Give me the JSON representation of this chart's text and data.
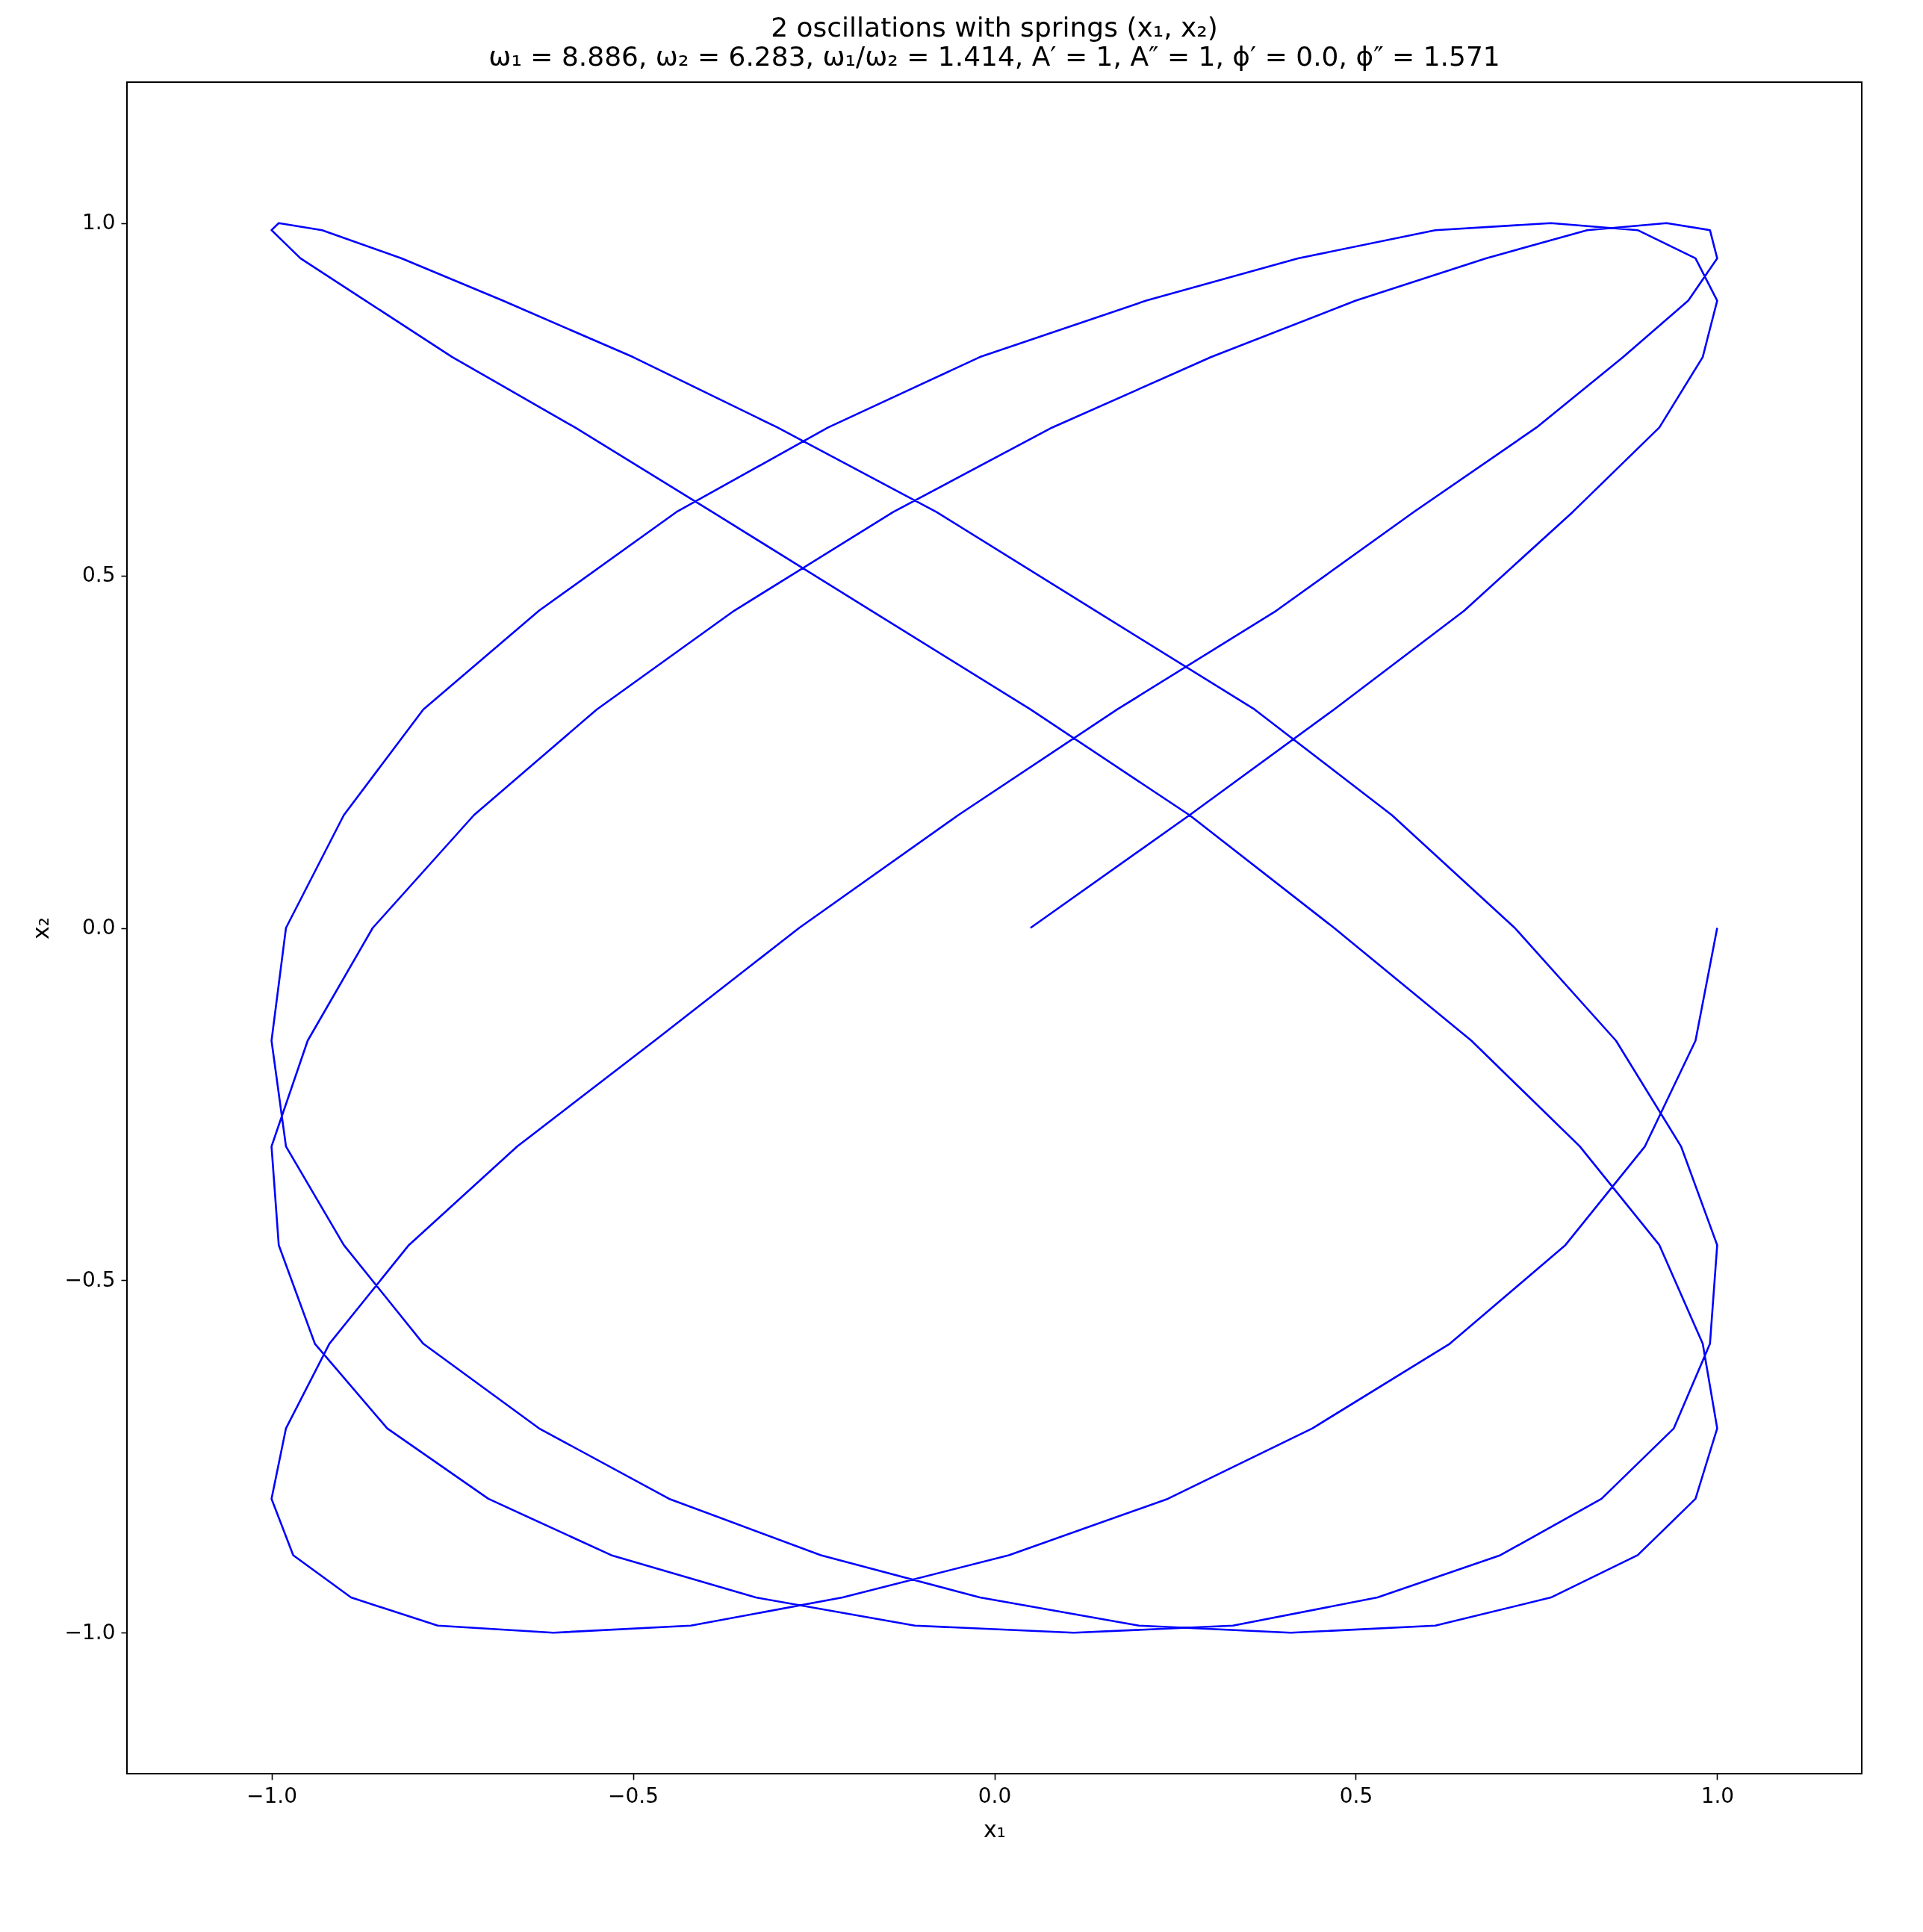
{
  "chart_data": {
    "type": "line",
    "title": "2 oscillations with springs (x₁, x₂)",
    "subtitle": "ω₁ = 8.886, ω₂ = 6.283, ω₁/ω₂ = 1.414, A′ = 1, A″ = 1, ϕ′ = 0.0, ϕ″ = 1.571",
    "xlabel": "x₁",
    "ylabel": "x₂",
    "xlim": [
      -1.2,
      1.2
    ],
    "ylim": [
      -1.2,
      1.2
    ],
    "xticks": [
      {
        "value": -1,
        "label": "−1.0"
      },
      {
        "value": -0.5,
        "label": "−0.5"
      },
      {
        "value": 0,
        "label": "0.0"
      },
      {
        "value": 0.5,
        "label": "0.5"
      },
      {
        "value": 1,
        "label": "1.0"
      }
    ],
    "yticks": [
      {
        "value": -1,
        "label": "−1.0"
      },
      {
        "value": -0.5,
        "label": "−0.5"
      },
      {
        "value": 0,
        "label": "0.0"
      },
      {
        "value": 0.5,
        "label": "0.5"
      },
      {
        "value": 1,
        "label": "1.0"
      }
    ],
    "series": [
      {
        "color": "#0000ff",
        "x": [
          1,
          0.97,
          0.9,
          0.79,
          0.63,
          0.44,
          0.24,
          0.02,
          -0.21,
          -0.42,
          -0.61,
          -0.77,
          -0.89,
          -0.97,
          -1,
          -0.98,
          -0.92,
          -0.81,
          -0.66,
          -0.47,
          -0.27,
          -0.05,
          0.17,
          0.39,
          0.58,
          0.75,
          0.87,
          0.96,
          1,
          0.99,
          0.93,
          0.82,
          0.68,
          0.5,
          0.3,
          0.08,
          -0.14,
          -0.36,
          -0.55,
          -0.72,
          -0.86,
          -0.95,
          -1,
          -0.99,
          -0.94,
          -0.84,
          -0.7,
          -0.53,
          -0.33,
          -0.11,
          0.11,
          0.33,
          0.53,
          0.7,
          0.84,
          0.94,
          0.99,
          1,
          0.95,
          0.86,
          0.72,
          0.55,
          0.36,
          0.14,
          -0.08,
          -0.3,
          -0.5,
          -0.68,
          -0.82,
          -0.93,
          -0.99,
          -1,
          -0.96,
          -0.87,
          -0.75,
          -0.58,
          -0.39,
          -0.17,
          0.05,
          0.27,
          0.47,
          0.66,
          0.81,
          0.92,
          0.98,
          1,
          0.97,
          0.89,
          0.77,
          0.61,
          0.41,
          0.2,
          -0.02,
          -0.24,
          -0.45,
          -0.63,
          -0.79,
          -0.9,
          -0.98,
          -1,
          -0.98,
          -0.9,
          -0.79,
          -0.63,
          -0.44,
          -0.23,
          -0.02,
          0.21,
          0.42,
          0.61,
          0.77,
          0.89,
          0.97,
          1,
          0.98,
          0.92,
          0.8,
          0.65,
          0.47,
          0.27,
          0.05
        ],
        "values": [
          0,
          -0.16,
          -0.31,
          -0.45,
          -0.59,
          -0.71,
          -0.81,
          -0.89,
          -0.95,
          -0.99,
          -1,
          -0.99,
          -0.95,
          -0.89,
          -0.81,
          -0.71,
          -0.59,
          -0.45,
          -0.31,
          -0.16,
          0,
          0.16,
          0.31,
          0.45,
          0.59,
          0.71,
          0.81,
          0.89,
          0.95,
          0.99,
          1,
          0.99,
          0.95,
          0.89,
          0.81,
          0.71,
          0.59,
          0.45,
          0.31,
          0.16,
          0,
          -0.16,
          -0.31,
          -0.45,
          -0.59,
          -0.71,
          -0.81,
          -0.89,
          -0.95,
          -0.99,
          -1,
          -0.99,
          -0.95,
          -0.89,
          -0.81,
          -0.71,
          -0.59,
          -0.45,
          -0.31,
          -0.16,
          0,
          0.16,
          0.31,
          0.45,
          0.59,
          0.71,
          0.81,
          0.89,
          0.95,
          0.99,
          1,
          0.99,
          0.95,
          0.89,
          0.81,
          0.71,
          0.59,
          0.45,
          0.31,
          0.16,
          0,
          -0.16,
          -0.31,
          -0.45,
          -0.59,
          -0.71,
          -0.81,
          -0.89,
          -0.95,
          -0.99,
          -1,
          -0.99,
          -0.95,
          -0.89,
          -0.81,
          -0.71,
          -0.59,
          -0.45,
          -0.31,
          -0.16,
          0,
          0.16,
          0.31,
          0.45,
          0.59,
          0.71,
          0.81,
          0.89,
          0.95,
          0.99,
          1,
          0.99,
          0.95,
          0.89,
          0.81,
          0.71,
          0.59,
          0.45,
          0.31,
          0.16,
          0
        ]
      }
    ]
  }
}
